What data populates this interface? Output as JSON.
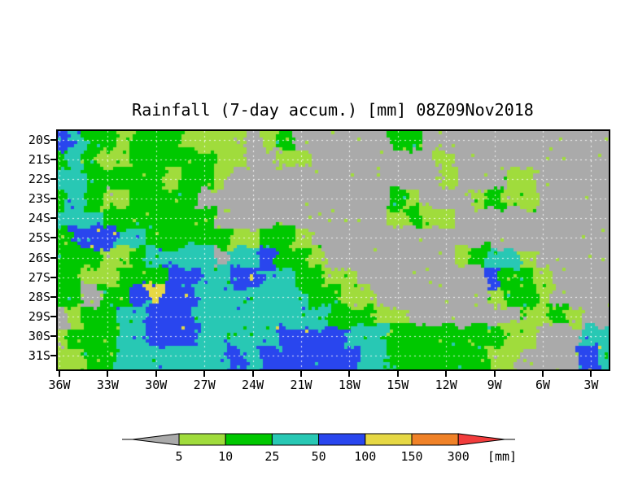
{
  "chart_data": {
    "type": "heatmap",
    "title": "Rainfall (7-day accum.) [mm] 08Z09Nov2018",
    "x_axis": {
      "ticks": [
        "36W",
        "33W",
        "30W",
        "27W",
        "24W",
        "21W",
        "18W",
        "15W",
        "12W",
        "9W",
        "6W",
        "3W"
      ]
    },
    "y_axis": {
      "ticks": [
        "20S",
        "21S",
        "22S",
        "23S",
        "24S",
        "25S",
        "26S",
        "27S",
        "28S",
        "29S",
        "30S",
        "31S"
      ]
    },
    "levels_mm": [
      5,
      10,
      25,
      50,
      100,
      150,
      300
    ],
    "colorbar": {
      "boundary_labels": [
        "5",
        "10",
        "25",
        "50",
        "100",
        "150",
        "300"
      ],
      "units_label": "[mm]",
      "below_min_color": "#aaaaaa",
      "above_max_color": "#f23c3c",
      "segment_colors": [
        "#a0dc3c",
        "#00c800",
        "#28c8b4",
        "#2946ee",
        "#e6d844",
        "#f08228"
      ]
    },
    "field": {
      "code_meaning": {
        "0": "<5 mm (gray)",
        "1": "5-10 mm",
        "2": "10-25 mm",
        "3": "25-50 mm",
        "4": "50-100 mm",
        "5": "100-150 mm"
      },
      "lon_cols_deg_west": [
        36,
        2
      ],
      "lat_rows_deg_south": [
        20,
        31
      ],
      "rows": [
        "43221222111101200000022000000000000",
        "23211222221100110000000010000000000",
        "33222221221000000000000010001100000",
        "23211222200000000000021000121100000",
        "33322222220000000000012110000000000",
        "24443322222112210000000000000000000",
        "22211233330334221000000001233100000",
        "22112224433443322110000000042210000",
        "22022454433333332211000000012210000",
        "01223344433333333222110000000112100",
        "12223344433333444433322222221100033",
        "11223333333434444443322222211000043"
      ]
    },
    "gridline_color": "rgba(255,255,255,0.85)",
    "frame_color": "#000000"
  }
}
